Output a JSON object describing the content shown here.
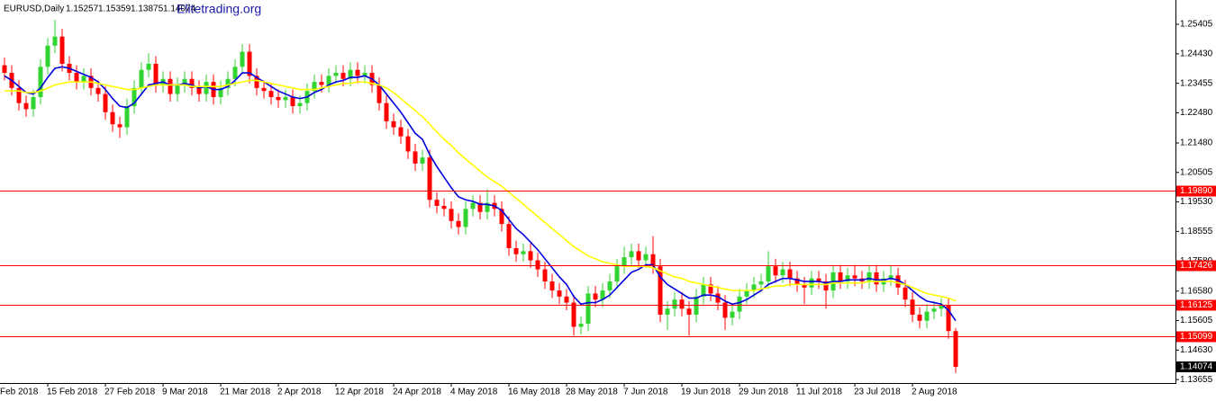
{
  "chart_data": {
    "type": "candlestick",
    "title": "EURUSD,Daily",
    "brand": "Elitetrading.org",
    "up_color": "#32d432",
    "down_color": "#ff0000",
    "x_edge_label": "Feb 2018",
    "categories": [
      null,
      null,
      null,
      null,
      null,
      null,
      "15 Feb 2018",
      null,
      null,
      null,
      null,
      null,
      null,
      null,
      "27 Feb 2018",
      null,
      null,
      null,
      null,
      null,
      null,
      null,
      "9 Mar 2018",
      null,
      null,
      null,
      null,
      null,
      null,
      null,
      "21 Mar 2018",
      null,
      null,
      null,
      null,
      null,
      null,
      null,
      "2 Apr 2018",
      null,
      null,
      null,
      null,
      null,
      null,
      null,
      "12 Apr 2018",
      null,
      null,
      null,
      null,
      null,
      null,
      null,
      "24 Apr 2018",
      null,
      null,
      null,
      null,
      null,
      null,
      null,
      "4 May 2018",
      null,
      null,
      null,
      null,
      null,
      null,
      null,
      "16 May 2018",
      null,
      null,
      null,
      null,
      null,
      null,
      null,
      "28 May 2018",
      null,
      null,
      null,
      null,
      null,
      null,
      null,
      "7 Jun 2018",
      null,
      null,
      null,
      null,
      null,
      null,
      null,
      "19 Jun 2018",
      null,
      null,
      null,
      null,
      null,
      null,
      null,
      "29 Jun 2018",
      null,
      null,
      null,
      null,
      null,
      null,
      null,
      "11 Jul 2018",
      null,
      null,
      null,
      null,
      null,
      null,
      null,
      "23 Jul 2018",
      null,
      null,
      null,
      null,
      null,
      null,
      null,
      "2 Aug 2018",
      null,
      null,
      null,
      null,
      null,
      null
    ],
    "open": [
      1.2405,
      1.238,
      1.233,
      1.228,
      1.226,
      1.23,
      1.24,
      1.247,
      1.25,
      1.241,
      1.238,
      1.235,
      1.237,
      1.233,
      1.231,
      1.225,
      1.221,
      1.22,
      1.227,
      1.233,
      1.239,
      1.241,
      1.234,
      1.236,
      1.231,
      1.234,
      1.236,
      1.233,
      1.231,
      1.235,
      1.23,
      1.233,
      1.236,
      1.24,
      1.245,
      1.237,
      1.233,
      1.232,
      1.23,
      1.229,
      1.23,
      1.227,
      1.228,
      1.232,
      1.235,
      1.234,
      1.237,
      1.238,
      1.236,
      1.239,
      1.237,
      1.238,
      1.234,
      1.228,
      1.222,
      1.22,
      1.217,
      1.212,
      1.208,
      1.21,
      1.196,
      1.194,
      1.193,
      1.189,
      1.187,
      1.193,
      1.195,
      1.192,
      1.195,
      1.193,
      1.188,
      1.18,
      1.178,
      1.179,
      1.176,
      1.173,
      1.169,
      1.166,
      1.164,
      1.162,
      1.154,
      1.155,
      1.165,
      1.163,
      1.166,
      1.169,
      1.174,
      1.177,
      1.179,
      1.176,
      1.178,
      1.174,
      1.158,
      1.16,
      1.163,
      1.16,
      1.158,
      1.164,
      1.168,
      1.165,
      1.162,
      1.157,
      1.159,
      1.164,
      1.166,
      1.168,
      1.169,
      1.174,
      1.171,
      1.173,
      1.17,
      1.168,
      1.167,
      1.17,
      1.169,
      1.166,
      1.172,
      1.169,
      1.171,
      1.17,
      1.169,
      1.172,
      1.168,
      1.17,
      1.171,
      1.167,
      1.163,
      1.158,
      1.156,
      1.159,
      1.16,
      1.161,
      1.15257
    ],
    "high": [
      1.243,
      1.2405,
      1.2355,
      1.2305,
      1.2325,
      1.2425,
      1.2495,
      1.2555,
      1.2525,
      1.2435,
      1.2405,
      1.2395,
      1.2395,
      1.2355,
      1.2335,
      1.2275,
      1.2235,
      1.2295,
      1.2355,
      1.2415,
      1.2445,
      1.2435,
      1.2385,
      1.2385,
      1.2365,
      1.2385,
      1.2385,
      1.2355,
      1.2375,
      1.2375,
      1.2355,
      1.2385,
      1.2425,
      1.2475,
      1.2475,
      1.2395,
      1.2355,
      1.2345,
      1.2325,
      1.2325,
      1.2325,
      1.2305,
      1.2345,
      1.2375,
      1.2375,
      1.2395,
      1.2405,
      1.2405,
      1.2415,
      1.2415,
      1.2405,
      1.2405,
      1.2365,
      1.2305,
      1.2245,
      1.2225,
      1.2195,
      1.2145,
      1.2125,
      1.2125,
      1.1985,
      1.1965,
      1.1955,
      1.1915,
      1.1955,
      1.1975,
      1.1975,
      1.1995,
      1.1975,
      1.1955,
      1.1905,
      1.1825,
      1.1815,
      1.1815,
      1.1785,
      1.1755,
      1.1715,
      1.1685,
      1.1665,
      1.1645,
      1.1575,
      1.1675,
      1.1675,
      1.1685,
      1.1715,
      1.1765,
      1.1805,
      1.1815,
      1.1815,
      1.1805,
      1.184,
      1.1765,
      1.1625,
      1.1655,
      1.1655,
      1.1625,
      1.1665,
      1.1705,
      1.1705,
      1.1675,
      1.1645,
      1.1615,
      1.1665,
      1.1685,
      1.1705,
      1.1715,
      1.179,
      1.1765,
      1.1755,
      1.1755,
      1.1725,
      1.1705,
      1.1725,
      1.1725,
      1.1715,
      1.1745,
      1.1745,
      1.1735,
      1.1745,
      1.1725,
      1.1745,
      1.1745,
      1.1725,
      1.1745,
      1.1735,
      1.1695,
      1.1655,
      1.1605,
      1.1615,
      1.1625,
      1.1635,
      1.1635,
      1.15359
    ],
    "low": [
      1.2355,
      1.2305,
      1.2255,
      1.2235,
      1.2235,
      1.2275,
      1.2375,
      1.2445,
      1.2385,
      1.2355,
      1.2325,
      1.2325,
      1.2305,
      1.2285,
      1.2225,
      1.2185,
      1.2165,
      1.2175,
      1.2245,
      1.2305,
      1.2365,
      1.2315,
      1.2315,
      1.2285,
      1.2285,
      1.2315,
      1.2305,
      1.2285,
      1.2285,
      1.2275,
      1.2275,
      1.2305,
      1.2335,
      1.2375,
      1.2345,
      1.2305,
      1.2295,
      1.2275,
      1.2265,
      1.2265,
      1.2245,
      1.2245,
      1.2255,
      1.2295,
      1.2315,
      1.2315,
      1.2345,
      1.2335,
      1.2335,
      1.2345,
      1.2345,
      1.2315,
      1.2255,
      1.2195,
      1.2175,
      1.2145,
      1.2095,
      1.2055,
      1.2055,
      1.1935,
      1.1915,
      1.1905,
      1.1865,
      1.1845,
      1.1845,
      1.1905,
      1.1895,
      1.1895,
      1.1905,
      1.1855,
      1.1775,
      1.1755,
      1.1755,
      1.1735,
      1.1705,
      1.1665,
      1.1635,
      1.1615,
      1.1595,
      1.151,
      1.1515,
      1.1525,
      1.1605,
      1.1605,
      1.1635,
      1.1665,
      1.1715,
      1.1745,
      1.1735,
      1.1735,
      1.1715,
      1.1555,
      1.153,
      1.1575,
      1.1575,
      1.151,
      1.1555,
      1.1615,
      1.1625,
      1.1595,
      1.153,
      1.1545,
      1.1565,
      1.1615,
      1.1635,
      1.1655,
      1.1665,
      1.1685,
      1.1685,
      1.1675,
      1.1655,
      1.1615,
      1.1645,
      1.1665,
      1.16,
      1.1635,
      1.1665,
      1.1665,
      1.1675,
      1.1665,
      1.1665,
      1.1655,
      1.1655,
      1.1675,
      1.1645,
      1.1605,
      1.1555,
      1.1535,
      1.1535,
      1.1565,
      1.1575,
      1.15,
      1.13875
    ],
    "close": [
      1.238,
      1.233,
      1.228,
      1.226,
      1.23,
      1.24,
      1.247,
      1.25,
      1.241,
      1.238,
      1.235,
      1.237,
      1.233,
      1.231,
      1.225,
      1.221,
      1.22,
      1.227,
      1.233,
      1.239,
      1.241,
      1.234,
      1.236,
      1.231,
      1.234,
      1.236,
      1.233,
      1.231,
      1.235,
      1.23,
      1.233,
      1.236,
      1.24,
      1.245,
      1.237,
      1.233,
      1.232,
      1.23,
      1.229,
      1.23,
      1.227,
      1.228,
      1.232,
      1.235,
      1.234,
      1.237,
      1.238,
      1.236,
      1.239,
      1.237,
      1.238,
      1.234,
      1.228,
      1.222,
      1.22,
      1.217,
      1.212,
      1.208,
      1.21,
      1.196,
      1.194,
      1.193,
      1.189,
      1.187,
      1.193,
      1.195,
      1.192,
      1.195,
      1.193,
      1.188,
      1.18,
      1.178,
      1.179,
      1.176,
      1.173,
      1.169,
      1.166,
      1.164,
      1.162,
      1.154,
      1.155,
      1.165,
      1.163,
      1.166,
      1.169,
      1.174,
      1.177,
      1.179,
      1.176,
      1.178,
      1.174,
      1.158,
      1.16,
      1.163,
      1.16,
      1.158,
      1.164,
      1.168,
      1.165,
      1.162,
      1.157,
      1.159,
      1.164,
      1.166,
      1.168,
      1.169,
      1.174,
      1.171,
      1.173,
      1.17,
      1.168,
      1.167,
      1.17,
      1.169,
      1.166,
      1.172,
      1.169,
      1.171,
      1.17,
      1.169,
      1.172,
      1.168,
      1.17,
      1.171,
      1.167,
      1.163,
      1.158,
      1.156,
      1.159,
      1.16,
      1.161,
      1.1526,
      1.14074
    ],
    "lines": [
      {
        "color": "#0000e0",
        "values": [
          1.237,
          1.2355,
          1.2335,
          1.2315,
          1.231,
          1.233,
          1.2365,
          1.2395,
          1.24,
          1.2395,
          1.2385,
          1.2375,
          1.2365,
          1.235,
          1.2325,
          1.2295,
          1.227,
          1.2265,
          1.228,
          1.231,
          1.234,
          1.2345,
          1.235,
          1.234,
          1.234,
          1.2345,
          1.234,
          1.233,
          1.2335,
          1.2325,
          1.2325,
          1.2335,
          1.2355,
          1.238,
          1.238,
          1.2365,
          1.235,
          1.2335,
          1.232,
          1.231,
          1.23,
          1.2295,
          1.23,
          1.2315,
          1.2325,
          1.234,
          1.235,
          1.2355,
          1.2365,
          1.2365,
          1.237,
          1.236,
          1.234,
          1.231,
          1.228,
          1.225,
          1.2215,
          1.218,
          1.216,
          1.211,
          1.207,
          1.2035,
          1.2,
          1.197,
          1.196,
          1.1955,
          1.1945,
          1.1945,
          1.194,
          1.1925,
          1.1895,
          1.1865,
          1.1845,
          1.182,
          1.1795,
          1.1765,
          1.1735,
          1.1705,
          1.168,
          1.164,
          1.1615,
          1.162,
          1.162,
          1.163,
          1.1645,
          1.167,
          1.1695,
          1.172,
          1.173,
          1.1745,
          1.1745,
          1.1705,
          1.168,
          1.1665,
          1.165,
          1.1635,
          1.1635,
          1.1645,
          1.1645,
          1.164,
          1.1625,
          1.1615,
          1.162,
          1.163,
          1.1645,
          1.166,
          1.168,
          1.169,
          1.17,
          1.17,
          1.1695,
          1.169,
          1.169,
          1.169,
          1.1685,
          1.169,
          1.169,
          1.1695,
          1.1695,
          1.1695,
          1.17,
          1.1695,
          1.1695,
          1.17,
          1.1695,
          1.168,
          1.166,
          1.164,
          1.1625,
          1.162,
          1.1615,
          1.1595,
          1.156
        ]
      },
      {
        "color": "#ffff00",
        "values": [
          1.232,
          1.232,
          1.232,
          1.2315,
          1.2315,
          1.232,
          1.233,
          1.234,
          1.2345,
          1.235,
          1.235,
          1.235,
          1.235,
          1.2345,
          1.234,
          1.2335,
          1.233,
          1.2325,
          1.2325,
          1.233,
          1.2335,
          1.234,
          1.234,
          1.234,
          1.234,
          1.234,
          1.2335,
          1.2335,
          1.2335,
          1.2335,
          1.2335,
          1.234,
          1.2345,
          1.235,
          1.2355,
          1.2355,
          1.235,
          1.2345,
          1.234,
          1.2335,
          1.233,
          1.2325,
          1.2325,
          1.2325,
          1.233,
          1.2335,
          1.234,
          1.2345,
          1.2345,
          1.235,
          1.235,
          1.2345,
          1.234,
          1.233,
          1.2315,
          1.2295,
          1.2275,
          1.2255,
          1.2235,
          1.221,
          1.2185,
          1.216,
          1.214,
          1.2115,
          1.2095,
          1.2075,
          1.2055,
          1.2035,
          1.202,
          1.2005,
          1.1985,
          1.1965,
          1.1945,
          1.1925,
          1.1905,
          1.1885,
          1.1865,
          1.1845,
          1.1825,
          1.1805,
          1.179,
          1.1775,
          1.1765,
          1.1755,
          1.175,
          1.1745,
          1.174,
          1.174,
          1.174,
          1.174,
          1.1735,
          1.1725,
          1.1715,
          1.1705,
          1.17,
          1.169,
          1.1685,
          1.168,
          1.1675,
          1.167,
          1.1665,
          1.166,
          1.166,
          1.166,
          1.166,
          1.1665,
          1.167,
          1.1675,
          1.1675,
          1.168,
          1.168,
          1.168,
          1.168,
          1.168,
          1.168,
          1.1685,
          1.1685,
          1.1685,
          1.1685,
          1.1685,
          1.169,
          1.169,
          1.169,
          1.169,
          1.1685,
          1.168,
          1.167,
          1.166,
          1.165,
          1.1645,
          1.164,
          1.1635,
          1.1625
        ]
      }
    ],
    "levels": [
      {
        "value": 1.1989,
        "label": "1.19890"
      },
      {
        "value": 1.17426,
        "label": "1.17426"
      },
      {
        "value": 1.16125,
        "label": "1.16125"
      },
      {
        "value": 1.15099,
        "label": "1.15099"
      }
    ],
    "level_color": "#ff0000",
    "ylim": [
      1.1354,
      1.2621
    ],
    "yticks": [
      1.25405,
      {
        "value": 1.2443,
        "label": "1.24430"
      },
      1.23455,
      {
        "value": 1.2248,
        "label": "1.22480"
      },
      {
        "value": 1.2148,
        "label": "1.21480"
      },
      1.20505,
      {
        "value": 1.1953,
        "label": "1.19530"
      },
      1.18555,
      {
        "value": 1.1758,
        "label": "1.17580"
      },
      {
        "value": 1.1658,
        "label": "1.16580"
      },
      1.15605,
      {
        "value": 1.1463,
        "label": "1.14630"
      },
      1.13655
    ]
  }
}
